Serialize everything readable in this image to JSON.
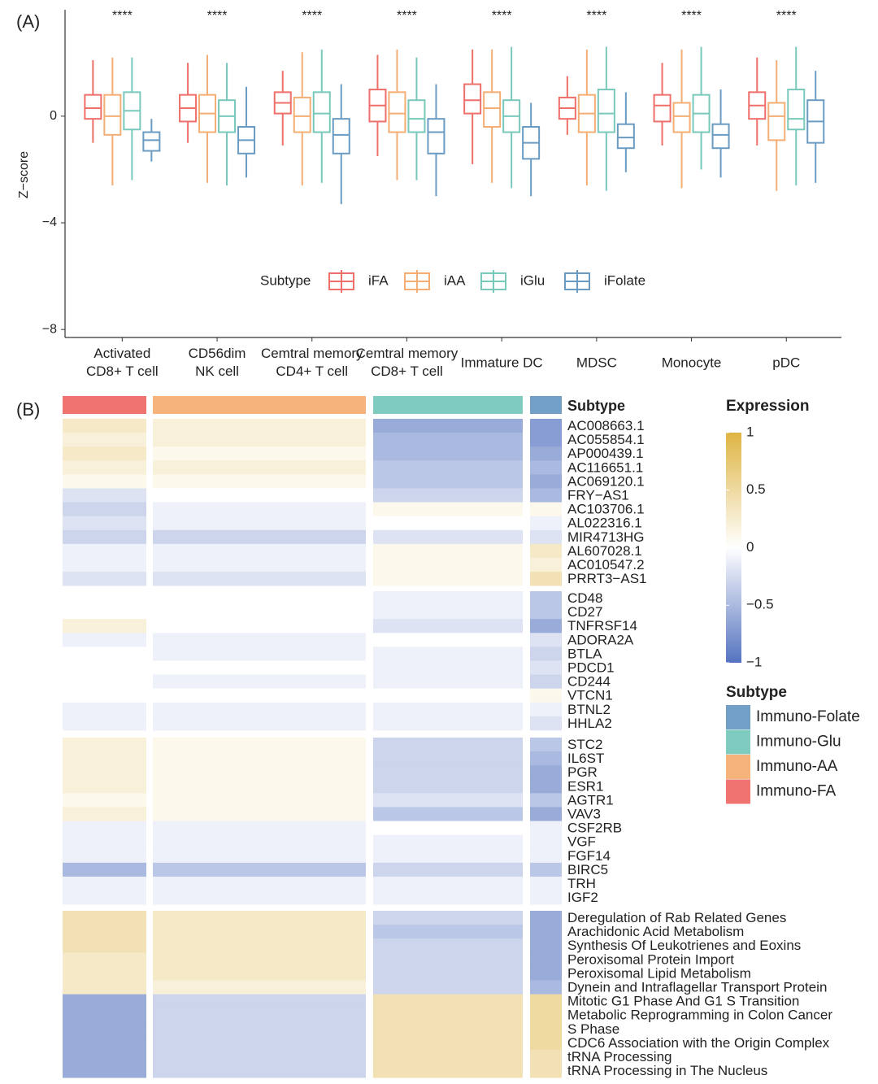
{
  "chart_data": [
    {
      "type": "box",
      "panel_label": "(A)",
      "ylabel": "Z−score",
      "categories": [
        "Activated\nCD8+ T cell",
        "CD56dim\nNK cell",
        "Cemtral memory\nCD4+ T cell",
        "Cemtral memory\nCD8+ T cell",
        "Immature DC",
        "MDSC",
        "Monocyte",
        "pDC"
      ],
      "annotations": [
        "****",
        "****",
        "****",
        "****",
        "****",
        "****",
        "****",
        "****"
      ],
      "legend_title": "Subtype",
      "series": [
        {
          "name": "iFA",
          "color": "#ef6f6a",
          "values": [
            [
              -1.0,
              -0.1,
              0.3,
              0.8,
              2.1
            ],
            [
              -1.0,
              -0.2,
              0.3,
              0.8,
              2.0
            ],
            [
              -1.1,
              0.1,
              0.5,
              0.9,
              1.7
            ],
            [
              -1.5,
              -0.2,
              0.4,
              1.0,
              2.3
            ],
            [
              -1.8,
              0.1,
              0.6,
              1.2,
              2.5
            ],
            [
              -0.7,
              -0.1,
              0.3,
              0.7,
              1.5
            ],
            [
              -1.1,
              -0.2,
              0.4,
              0.8,
              2.0
            ],
            [
              -1.1,
              -0.1,
              0.4,
              0.9,
              2.2
            ]
          ]
        },
        {
          "name": "iAA",
          "color": "#f4ae74",
          "values": [
            [
              -2.6,
              -0.7,
              0,
              0.8,
              2.2
            ],
            [
              -2.5,
              -0.6,
              0.1,
              0.8,
              2.3
            ],
            [
              -2.6,
              -0.6,
              0,
              0.7,
              2.4
            ],
            [
              -2.4,
              -0.6,
              0.1,
              0.9,
              2.5
            ],
            [
              -2.5,
              -0.4,
              0.3,
              0.9,
              2.5
            ],
            [
              -2.6,
              -0.6,
              0.1,
              0.8,
              2.5
            ],
            [
              -2.7,
              -0.6,
              0,
              0.5,
              2.5
            ],
            [
              -2.8,
              -0.9,
              0,
              0.5,
              2.1
            ]
          ]
        },
        {
          "name": "iGlu",
          "color": "#78c8bc",
          "values": [
            [
              -2.4,
              -0.5,
              0.2,
              0.9,
              2.2
            ],
            [
              -2.6,
              -0.6,
              0,
              0.6,
              2.0
            ],
            [
              -2.5,
              -0.6,
              0.1,
              0.9,
              2.5
            ],
            [
              -2.4,
              -0.6,
              -0.1,
              0.6,
              2.2
            ],
            [
              -2.7,
              -0.6,
              0,
              0.6,
              2.6
            ],
            [
              -2.8,
              -0.6,
              0.1,
              1.0,
              2.6
            ],
            [
              -2.0,
              -0.6,
              0.1,
              0.8,
              2.6
            ],
            [
              -2.6,
              -0.5,
              -0.1,
              1.0,
              2.6
            ]
          ]
        },
        {
          "name": "iFolate",
          "color": "#6a9bc3",
          "values": [
            [
              -1.7,
              -1.3,
              -0.9,
              -0.6,
              -0.1
            ],
            [
              -2.3,
              -1.4,
              -0.9,
              -0.4,
              1.1
            ],
            [
              -3.3,
              -1.4,
              -0.7,
              -0.1,
              1.2
            ],
            [
              -3.0,
              -1.4,
              -0.6,
              -0.1,
              1.2
            ],
            [
              -3.0,
              -1.6,
              -1.0,
              -0.4,
              0.5
            ],
            [
              -2.1,
              -1.2,
              -0.8,
              -0.3,
              0.9
            ],
            [
              -2.3,
              -1.2,
              -0.7,
              -0.3,
              1.0
            ],
            [
              -2.5,
              -1.0,
              -0.2,
              0.6,
              1.7
            ]
          ]
        }
      ],
      "ylim": [
        -8.3,
        3.9
      ],
      "yticks": [
        {
          "value": -8,
          "label": "−8"
        },
        {
          "value": -4,
          "label": "−4"
        },
        0
      ]
    },
    {
      "type": "heatmap",
      "panel_label": "(B)",
      "annotation_title": "Subtype",
      "legend_title": "Subtype",
      "colorbar_title": "Expression",
      "clim": [
        -1,
        1
      ],
      "colors": {
        "low": "#5573c0",
        "mid": "#ffffff",
        "high": "#deb443"
      },
      "cticks": [
        1,
        0.5,
        0,
        {
          "value": -0.5,
          "label": "−0.5"
        },
        {
          "value": -1,
          "label": "−1"
        }
      ],
      "subtypes": [
        {
          "name": "Immuno-FA",
          "color": "#ef7470"
        },
        {
          "name": "Immuno-AA",
          "color": "#f6b37c"
        },
        {
          "name": "Immuno-Glu",
          "color": "#7fcbbf"
        },
        {
          "name": "Immuno-Folate",
          "color": "#729fc6"
        }
      ],
      "groups": [
        {
          "rows": [
            "AC008663.1",
            "AC055854.1",
            "AP000439.1",
            "AC116651.1",
            "AC069120.1",
            "FRY−AS1",
            "AC103706.1",
            "AL022316.1",
            "MIR4713HG",
            "AL607028.1",
            "AC010547.2",
            "PRRT3−AS1"
          ],
          "values": [
            [
              0.3,
              0.2,
              -0.6,
              -0.7
            ],
            [
              0.2,
              0.2,
              -0.5,
              -0.7
            ],
            [
              0.3,
              0.1,
              -0.5,
              -0.6
            ],
            [
              0.2,
              0.2,
              -0.4,
              -0.5
            ],
            [
              0.1,
              0.1,
              -0.4,
              -0.6
            ],
            [
              -0.2,
              0,
              -0.3,
              -0.5
            ],
            [
              -0.3,
              -0.1,
              0.1,
              0.1
            ],
            [
              -0.2,
              -0.1,
              0,
              -0.1
            ],
            [
              -0.3,
              -0.3,
              -0.2,
              -0.2
            ],
            [
              -0.1,
              -0.1,
              0.1,
              0.3
            ],
            [
              -0.1,
              -0.1,
              0.1,
              0.2
            ],
            [
              -0.2,
              -0.2,
              0.1,
              0.4
            ]
          ]
        },
        {
          "rows": [
            "CD48",
            "CD27",
            "TNFRSF14",
            "ADORA2A",
            "BTLA",
            "PDCD1",
            "CD244",
            "VTCN1",
            "BTNL2",
            "HHLA2"
          ],
          "values": [
            [
              0,
              0,
              -0.1,
              -0.4
            ],
            [
              0,
              0,
              -0.1,
              -0.4
            ],
            [
              0.2,
              0,
              -0.2,
              -0.6
            ],
            [
              -0.1,
              -0.1,
              0,
              -0.2
            ],
            [
              0,
              -0.1,
              -0.1,
              -0.3
            ],
            [
              0,
              0,
              -0.1,
              -0.2
            ],
            [
              0,
              -0.1,
              -0.1,
              -0.3
            ],
            [
              0,
              0,
              0,
              0.1
            ],
            [
              -0.1,
              -0.1,
              -0.1,
              -0.1
            ],
            [
              -0.1,
              -0.1,
              -0.1,
              -0.2
            ]
          ]
        },
        {
          "rows": [
            "STC2",
            "IL6ST",
            "PGR",
            "ESR1",
            "AGTR1",
            "VAV3",
            "CSF2RB",
            "VGF",
            "FGF14",
            "BIRC5",
            "TRH",
            "IGF2"
          ],
          "values": [
            [
              0.2,
              0.1,
              -0.3,
              -0.4
            ],
            [
              0.2,
              0.1,
              -0.3,
              -0.5
            ],
            [
              0.2,
              0.1,
              -0.3,
              -0.6
            ],
            [
              0.2,
              0.1,
              -0.3,
              -0.6
            ],
            [
              0.1,
              0.1,
              -0.2,
              -0.4
            ],
            [
              0.2,
              0.1,
              -0.4,
              -0.6
            ],
            [
              -0.1,
              -0.1,
              0,
              -0.1
            ],
            [
              -0.1,
              -0.1,
              -0.1,
              -0.1
            ],
            [
              -0.1,
              -0.1,
              -0.1,
              -0.1
            ],
            [
              -0.5,
              -0.4,
              -0.3,
              -0.4
            ],
            [
              -0.1,
              -0.1,
              -0.1,
              -0.1
            ],
            [
              -0.1,
              -0.1,
              -0.1,
              -0.1
            ]
          ]
        },
        {
          "rows": [
            "Deregulation of Rab Related Genes",
            "Arachidonic Acid Metabolism",
            "Synthesis Of Leukotrienes and Eoxins",
            "Peroxisomal Protein Import",
            "Peroxisomal Lipid Metabolism",
            "Dynein and Intraflagellar Transport Protein",
            "Mitotic G1 Phase And G1 S Transition",
            "Metabolic Reprogramming in Colon Cancer",
            "S Phase",
            "CDC6 Association with the Origin Complex",
            "tRNA Processing",
            "tRNA Processing in The Nucleus"
          ],
          "values": [
            [
              0.4,
              0.3,
              -0.3,
              -0.6
            ],
            [
              0.4,
              0.3,
              -0.4,
              -0.6
            ],
            [
              0.4,
              0.3,
              -0.3,
              -0.6
            ],
            [
              0.3,
              0.3,
              -0.3,
              -0.6
            ],
            [
              0.3,
              0.3,
              -0.3,
              -0.6
            ],
            [
              0.3,
              0.2,
              -0.3,
              -0.5
            ],
            [
              -0.6,
              -0.3,
              0.4,
              0.5
            ],
            [
              -0.6,
              -0.3,
              0.4,
              0.5
            ],
            [
              -0.6,
              -0.3,
              0.4,
              0.5
            ],
            [
              -0.6,
              -0.3,
              0.4,
              0.5
            ],
            [
              -0.6,
              -0.3,
              0.4,
              0.4
            ],
            [
              -0.6,
              -0.3,
              0.4,
              0.4
            ]
          ]
        }
      ]
    }
  ]
}
